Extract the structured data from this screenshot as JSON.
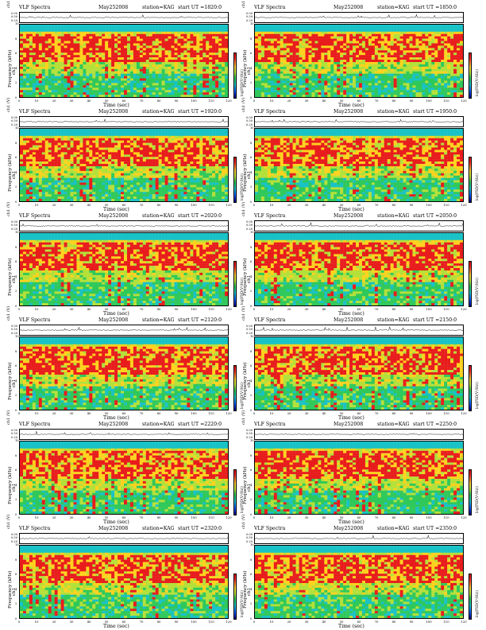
{
  "chart_data": [
    {
      "type": "heatmap",
      "title": "VLF Spectra",
      "date": "May252008",
      "station": "station=KAG",
      "start": "start  UT =1820:0",
      "wave_ylabel": "ch1 (V)",
      "wave_yticks": [
        "0.00",
        "0.50",
        "0.20"
      ],
      "channel": "ch1",
      "ylabel": "Frequency (kHz)",
      "xlabel": "Time (sec)",
      "xlim": [
        0,
        120
      ],
      "ylim": [
        0,
        10
      ],
      "xticks": [
        "0",
        "10",
        "20",
        "30",
        "40",
        "50",
        "60",
        "70",
        "80",
        "90",
        "100",
        "110",
        "120"
      ],
      "yticks": [
        "0",
        "2",
        "4",
        "6",
        "8",
        "10"
      ],
      "colorbar_label": "log(PSD(V²/Hz))"
    },
    {
      "type": "heatmap",
      "title": "VLF Spectra",
      "date": "May252008",
      "station": "station=KAG",
      "start": "start  UT =1850:0",
      "wave_ylabel": "ch1 (V)",
      "wave_yticks": [
        "0.00",
        "0.50",
        "0.20"
      ],
      "channel": "ch1",
      "ylabel": "Frequency (kHz)",
      "xlabel": "Time (sec)",
      "xlim": [
        0,
        120
      ],
      "ylim": [
        0,
        10
      ],
      "xticks": [
        "0",
        "10",
        "20",
        "30",
        "40",
        "50",
        "60",
        "70",
        "80",
        "90",
        "100",
        "110",
        "120"
      ],
      "yticks": [
        "0",
        "2",
        "4",
        "6",
        "8",
        "10"
      ],
      "colorbar_label": "log(PSD(V²/Hz))"
    },
    {
      "type": "heatmap",
      "title": "VLF Spectra",
      "date": "May252008",
      "station": "station=KAG",
      "start": "start  UT =1920:0",
      "wave_ylabel": "ch1 (V)",
      "wave_yticks": [
        "0.00",
        "0.50",
        "0.20"
      ],
      "channel": "ch1",
      "ylabel": "Frequency (kHz)",
      "xlabel": "Time (sec)",
      "xlim": [
        0,
        120
      ],
      "ylim": [
        0,
        10
      ],
      "xticks": [
        "0",
        "10",
        "20",
        "30",
        "40",
        "50",
        "60",
        "70",
        "80",
        "90",
        "100",
        "110",
        "120"
      ],
      "yticks": [
        "0",
        "2",
        "4",
        "6",
        "8",
        "10"
      ],
      "colorbar_label": "log(PSD(V²/Hz))"
    },
    {
      "type": "heatmap",
      "title": "VLF Spectra",
      "date": "May252008",
      "station": "station=KAG",
      "start": "start  UT =1950:0",
      "wave_ylabel": "ch1 (V)",
      "wave_yticks": [
        "0.00",
        "0.50",
        "0.20"
      ],
      "channel": "ch1",
      "ylabel": "Frequency (kHz)",
      "xlabel": "Time (sec)",
      "xlim": [
        0,
        120
      ],
      "ylim": [
        0,
        10
      ],
      "xticks": [
        "0",
        "10",
        "20",
        "30",
        "40",
        "50",
        "60",
        "70",
        "80",
        "90",
        "100",
        "110",
        "120"
      ],
      "yticks": [
        "0",
        "2",
        "4",
        "6",
        "8",
        "10"
      ],
      "colorbar_label": "log(PSD(V²/Hz))"
    },
    {
      "type": "heatmap",
      "title": "VLF Spectra",
      "date": "May252008",
      "station": "station=KAG",
      "start": "start  UT =2020:0",
      "wave_ylabel": "ch1 (V)",
      "wave_yticks": [
        "0.00",
        "0.50",
        "0.20"
      ],
      "channel": "ch1",
      "ylabel": "Frequency (kHz)",
      "xlabel": "Time (sec)",
      "xlim": [
        0,
        120
      ],
      "ylim": [
        0,
        10
      ],
      "xticks": [
        "0",
        "10",
        "20",
        "30",
        "40",
        "50",
        "60",
        "70",
        "80",
        "90",
        "100",
        "110",
        "120"
      ],
      "yticks": [
        "0",
        "2",
        "4",
        "6",
        "8",
        "10"
      ],
      "colorbar_label": "log(PSD(V²/Hz))"
    },
    {
      "type": "heatmap",
      "title": "VLF Spectra",
      "date": "May252008",
      "station": "station=KAG",
      "start": "start  UT =2050:0",
      "wave_ylabel": "ch1 (V)",
      "wave_yticks": [
        "0.00",
        "0.50",
        "0.20"
      ],
      "channel": "ch1",
      "ylabel": "Frequency (kHz)",
      "xlabel": "Time (sec)",
      "xlim": [
        0,
        120
      ],
      "ylim": [
        0,
        10
      ],
      "xticks": [
        "0",
        "10",
        "20",
        "30",
        "40",
        "50",
        "60",
        "70",
        "80",
        "90",
        "100",
        "110",
        "120"
      ],
      "yticks": [
        "0",
        "2",
        "4",
        "6",
        "8",
        "10"
      ],
      "colorbar_label": "log(PSD(V²/Hz))"
    },
    {
      "type": "heatmap",
      "title": "VLF Spectra",
      "date": "May252008",
      "station": "station=KAG",
      "start": "start  UT =2120:0",
      "wave_ylabel": "ch1 (V)",
      "wave_yticks": [
        "0.00",
        "0.50",
        "0.20"
      ],
      "channel": "ch1",
      "ylabel": "Frequency (kHz)",
      "xlabel": "Time (sec)",
      "xlim": [
        0,
        120
      ],
      "ylim": [
        0,
        10
      ],
      "xticks": [
        "0",
        "10",
        "20",
        "30",
        "40",
        "50",
        "60",
        "70",
        "80",
        "90",
        "100",
        "110",
        "120"
      ],
      "yticks": [
        "0",
        "2",
        "4",
        "6",
        "8",
        "10"
      ],
      "colorbar_label": "log(PSD(V²/Hz))"
    },
    {
      "type": "heatmap",
      "title": "VLF Spectra",
      "date": "May252008",
      "station": "station=KAG",
      "start": "start  UT =2150:0",
      "wave_ylabel": "ch1 (V)",
      "wave_yticks": [
        "0.00",
        "0.50",
        "0.20"
      ],
      "channel": "ch1",
      "ylabel": "Frequency (kHz)",
      "xlabel": "Time (sec)",
      "xlim": [
        0,
        120
      ],
      "ylim": [
        0,
        10
      ],
      "xticks": [
        "0",
        "10",
        "20",
        "30",
        "40",
        "50",
        "60",
        "70",
        "80",
        "90",
        "100",
        "110",
        "120"
      ],
      "yticks": [
        "0",
        "2",
        "4",
        "6",
        "8",
        "10"
      ],
      "colorbar_label": "log(PSD(V²/Hz))"
    },
    {
      "type": "heatmap",
      "title": "VLF Spectra",
      "date": "May252008",
      "station": "station=KAG",
      "start": "start  UT =2220:0",
      "wave_ylabel": "ch1 (V)",
      "wave_yticks": [
        "0.00",
        "0.50",
        "0.20"
      ],
      "channel": "ch1",
      "ylabel": "Frequency (kHz)",
      "xlabel": "Time (sec)",
      "xlim": [
        0,
        120
      ],
      "ylim": [
        0,
        10
      ],
      "xticks": [
        "0",
        "10",
        "20",
        "30",
        "40",
        "50",
        "60",
        "70",
        "80",
        "90",
        "100",
        "110",
        "120"
      ],
      "yticks": [
        "0",
        "2",
        "4",
        "6",
        "8",
        "10"
      ],
      "colorbar_label": "log(PSD(V²/Hz))"
    },
    {
      "type": "heatmap",
      "title": "VLF Spectra",
      "date": "May252008",
      "station": "station=KAG",
      "start": "start  UT =2250:0",
      "wave_ylabel": "ch1 (V)",
      "wave_yticks": [
        "0.00",
        "0.50",
        "0.20"
      ],
      "channel": "ch1",
      "ylabel": "Frequency (kHz)",
      "xlabel": "Time (sec)",
      "xlim": [
        0,
        120
      ],
      "ylim": [
        0,
        10
      ],
      "xticks": [
        "0",
        "10",
        "20",
        "30",
        "40",
        "50",
        "60",
        "70",
        "80",
        "90",
        "100",
        "110",
        "120"
      ],
      "yticks": [
        "0",
        "2",
        "4",
        "6",
        "8",
        "10"
      ],
      "colorbar_label": "log(PSD(V²/Hz))"
    },
    {
      "type": "heatmap",
      "title": "VLF Spectra",
      "date": "May252008",
      "station": "station=KAG",
      "start": "start  UT =2320:0",
      "wave_ylabel": "ch1 (V)",
      "wave_yticks": [
        "0.00",
        "0.50",
        "0.20"
      ],
      "channel": "ch1",
      "ylabel": "Frequency (kHz)",
      "xlabel": "Time (sec)",
      "xlim": [
        0,
        120
      ],
      "ylim": [
        0,
        10
      ],
      "xticks": [
        "0",
        "10",
        "20",
        "30",
        "40",
        "50",
        "60",
        "70",
        "80",
        "90",
        "100",
        "110",
        "120"
      ],
      "yticks": [
        "0",
        "2",
        "4",
        "6",
        "8",
        "10"
      ],
      "colorbar_label": "log(PSD(V²/Hz))"
    },
    {
      "type": "heatmap",
      "title": "VLF Spectra",
      "date": "May252008",
      "station": "station=KAG",
      "start": "start  UT =2350:0",
      "wave_ylabel": "ch1 (V)",
      "wave_yticks": [
        "0.00",
        "0.50",
        "0.20"
      ],
      "channel": "ch1",
      "ylabel": "Frequency (kHz)",
      "xlabel": "Time (sec)",
      "xlim": [
        0,
        120
      ],
      "ylim": [
        0,
        10
      ],
      "xticks": [
        "0",
        "10",
        "20",
        "30",
        "40",
        "50",
        "60",
        "70",
        "80",
        "90",
        "100",
        "110",
        "120"
      ],
      "yticks": [
        "0",
        "2",
        "4",
        "6",
        "8",
        "10"
      ],
      "colorbar_label": "log(PSD(V²/Hz))"
    }
  ],
  "colors": {
    "strong": "#e81c1c",
    "high": "#ffd21e",
    "mid": "#b4e03a",
    "low": "#2fc85a",
    "weak": "#19c2c6",
    "quiet": "#1060ff"
  }
}
